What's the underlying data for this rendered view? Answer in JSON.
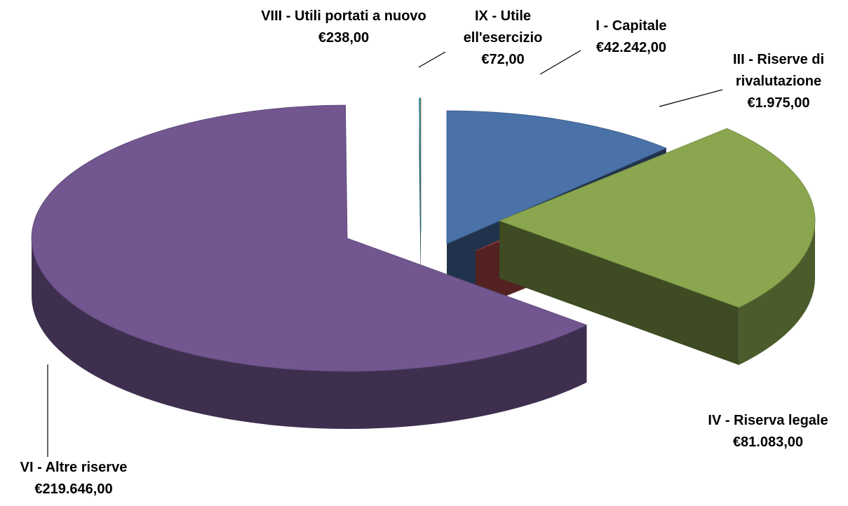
{
  "chart_data": {
    "type": "pie",
    "categories": [
      "I - Capitale",
      "III - Riserve di rivalutazione",
      "IV - Riserva legale",
      "VI - Altre riserve",
      "VIII - Utili portati a nuovo",
      "IX - Utile ell'esercizio"
    ],
    "values": [
      42242,
      1975,
      81083,
      219646,
      238,
      72
    ],
    "value_labels": [
      "€42.242,00",
      "€1.975,00",
      "€81.083,00",
      "€219.646,00",
      "€238,00",
      "€72,00"
    ],
    "colors": [
      "#4a72a8",
      "#b84a48",
      "#8aa64e",
      "#715690",
      "#3e9aa8",
      "#d88a3a"
    ]
  }
}
